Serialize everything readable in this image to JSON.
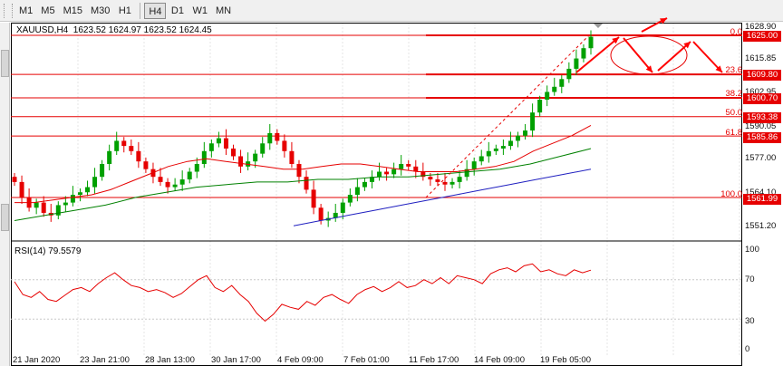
{
  "toolbar": {
    "timeframes": [
      "M1",
      "M5",
      "M15",
      "M30",
      "H1",
      "H4",
      "D1",
      "W1",
      "MN"
    ],
    "active": "H4"
  },
  "chart": {
    "header": "XAUUSD,H4  1623.52 1624.97 1623.52 1624.45",
    "rsi_label": "RSI(14) 79.5579"
  },
  "colors": {
    "bull": "#00a000",
    "bear": "#e60000",
    "ma_red": "#e60000",
    "ma_green": "#008000",
    "ma_blue": "#2020c0",
    "rsi": "#e60000",
    "arrows": "#ff0000",
    "price_box": "#e60000"
  },
  "price_axis_labels": [
    "1628.90",
    "1615.85",
    "1602.95",
    "1590.05",
    "1577.00",
    "1564.10",
    "1551.20"
  ],
  "price_boxes": [
    "1625.00",
    "1609.80",
    "1600.70",
    "1593.38",
    "1585.86",
    "1561.99"
  ],
  "fib_levels": [
    "0.0",
    "23.6",
    "38.2",
    "50.0",
    "61.8",
    "100.0"
  ],
  "rsi_axis_labels": [
    "100",
    "70",
    "30",
    "0"
  ],
  "time_axis_labels": [
    "21 Jan 2020",
    "23 Jan 21:00",
    "28 Jan 13:00",
    "30 Jan 17:00",
    "4 Feb 09:00",
    "7 Feb 01:00",
    "11 Feb 17:00",
    "14 Feb 09:00",
    "19 Feb 05:00"
  ],
  "chart_data": {
    "type": "candlestick",
    "symbol": "XAUUSD",
    "timeframe": "H4",
    "ohlc_last": {
      "open": 1623.52,
      "high": 1624.97,
      "low": 1623.52,
      "close": 1624.45
    },
    "y_range": [
      1545,
      1631
    ],
    "horizontal_levels": [
      {
        "fib": "0.0",
        "price": 1625.0
      },
      {
        "fib": "23.6",
        "price": 1609.8
      },
      {
        "fib": "38.2",
        "price": 1600.7
      },
      {
        "fib": "50.0",
        "price": 1593.38
      },
      {
        "fib": "61.8",
        "price": 1585.86
      },
      {
        "fib": "100.0",
        "price": 1561.99
      }
    ],
    "closes": [
      1568,
      1562,
      1558,
      1560,
      1556,
      1555,
      1559,
      1560,
      1563,
      1564,
      1566,
      1570,
      1575,
      1580,
      1584,
      1582,
      1580,
      1576,
      1573,
      1570,
      1568,
      1566,
      1567,
      1569,
      1572,
      1575,
      1580,
      1583,
      1585,
      1581,
      1578,
      1574,
      1576,
      1579,
      1583,
      1587,
      1584,
      1580,
      1575,
      1570,
      1565,
      1558,
      1553,
      1554,
      1556,
      1560,
      1563,
      1566,
      1568,
      1570,
      1572,
      1571,
      1573,
      1575,
      1574,
      1572,
      1570,
      1569,
      1568,
      1567,
      1568,
      1570,
      1573,
      1576,
      1578,
      1580,
      1581,
      1582,
      1584,
      1586,
      1588,
      1595,
      1600,
      1603,
      1605,
      1608,
      1612,
      1616,
      1620,
      1624.45
    ],
    "ma_red": [
      1560,
      1560,
      1561,
      1562,
      1563,
      1565,
      1568,
      1571,
      1574,
      1576,
      1577,
      1576,
      1575,
      1574,
      1573,
      1573,
      1574,
      1575,
      1575,
      1574,
      1573,
      1572,
      1572,
      1572,
      1573,
      1574,
      1576,
      1580,
      1583,
      1586,
      1590
    ],
    "ma_green": [
      1553,
      1555,
      1557,
      1559,
      1562,
      1564,
      1566,
      1567,
      1568,
      1568,
      1569,
      1569,
      1570,
      1570,
      1571,
      1572,
      1573,
      1575,
      1578,
      1581
    ],
    "ma_blue": [
      1551,
      1553,
      1555,
      1557,
      1559,
      1561,
      1563,
      1565,
      1567,
      1569,
      1571,
      1573
    ],
    "rsi": {
      "value": 79.5579,
      "levels": [
        30,
        70
      ],
      "series": [
        68,
        55,
        52,
        58,
        50,
        48,
        54,
        60,
        62,
        58,
        66,
        72,
        77,
        70,
        64,
        62,
        58,
        60,
        57,
        52,
        56,
        63,
        70,
        74,
        62,
        58,
        64,
        55,
        48,
        36,
        28,
        35,
        45,
        42,
        40,
        48,
        44,
        52,
        55,
        50,
        46,
        55,
        60,
        63,
        58,
        62,
        68,
        62,
        64,
        70,
        66,
        72,
        66,
        74,
        72,
        70,
        66,
        76,
        80,
        82,
        78,
        84,
        86,
        78,
        80,
        76,
        74,
        80,
        77,
        79.6
      ]
    }
  }
}
